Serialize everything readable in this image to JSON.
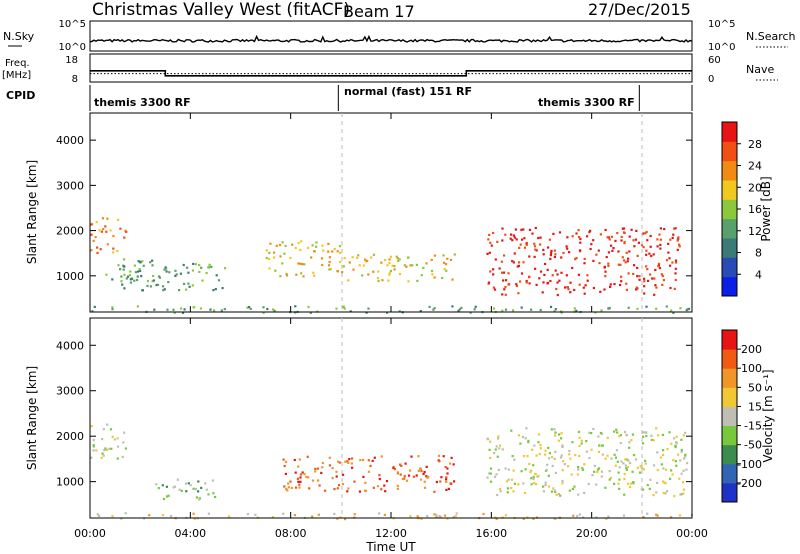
{
  "header": {
    "title": "Christmas Valley West (fitACF)",
    "beam": "Beam 17",
    "date": "27/Dec/2015"
  },
  "panels": {
    "noise": {
      "left_label": "N.Sky",
      "right_label": "N.Search",
      "left_ticks": [
        "10^5",
        "10^0"
      ],
      "right_ticks": [
        "10^5",
        "10^0"
      ]
    },
    "freq": {
      "left_label_1": "Freq.",
      "left_label_2": "[MHz]",
      "left_ticks": [
        "18",
        "8"
      ],
      "right_ticks": [
        "60",
        "0"
      ],
      "right_label": "Nave",
      "freq_steps": [
        {
          "start": 0.0,
          "end": 3.0,
          "value": 12.0
        },
        {
          "start": 3.0,
          "end": 15.0,
          "value": 10.2
        },
        {
          "start": 15.0,
          "end": 24.0,
          "value": 12.0
        }
      ],
      "nave_level": 18
    },
    "cpid": {
      "label": "CPID",
      "segments": [
        {
          "start": 0.0,
          "end": 9.9,
          "text": "themis 3300 RF"
        },
        {
          "start": 9.9,
          "end": 21.9,
          "text": "normal (fast) 151 RF"
        },
        {
          "start": 21.9,
          "end": 24.0,
          "text": ""
        }
      ],
      "extra_label": "themis 3300 RF"
    },
    "power": {
      "ylabel": "Slant Range [km]",
      "yticks": [
        1000,
        2000,
        3000,
        4000
      ],
      "ylim": [
        200,
        4600
      ],
      "colorbar_label": "Power [dB]",
      "colorbar_ticks": [
        "28",
        "24",
        "20",
        "16",
        "12",
        "8",
        "4"
      ],
      "colors": [
        "#0a1ee6",
        "#2a4ab4",
        "#3c7a78",
        "#5aa06a",
        "#8cc83c",
        "#f0c820",
        "#f08c14",
        "#f05014",
        "#e61414"
      ]
    },
    "velocity": {
      "ylabel": "Slant Range [km]",
      "yticks": [
        1000,
        2000,
        3000,
        4000
      ],
      "ylim": [
        200,
        4600
      ],
      "colorbar_label": "Velocity [m s⁻¹]",
      "colorbar_ticks": [
        "200",
        "100",
        "50",
        "15",
        "-15",
        "-50",
        "-100",
        "-200"
      ],
      "colors": [
        "#1e32c8",
        "#3264b4",
        "#3c8c50",
        "#78c83c",
        "#bebeb4",
        "#f0c832",
        "#f09628",
        "#f05a14",
        "#e61414"
      ]
    }
  },
  "xaxis": {
    "label": "Time UT",
    "ticks": [
      "00:00",
      "04:00",
      "08:00",
      "12:00",
      "16:00",
      "20:00",
      "00:00"
    ]
  },
  "chart_data": {
    "type": "heatmap",
    "x_unit": "hours UT",
    "xlim": [
      0,
      24
    ],
    "ylim": [
      200,
      4600
    ],
    "dashed_markers": [
      9.9,
      21.9
    ],
    "power_regions": [
      {
        "t0": 0.0,
        "t1": 1.4,
        "r0": 1500,
        "r1": 2300,
        "level": 6
      },
      {
        "t0": 0.6,
        "t1": 2.6,
        "r0": 900,
        "r1": 1400,
        "level": 3
      },
      {
        "t0": 1.2,
        "t1": 5.5,
        "r0": 700,
        "r1": 1300,
        "level": 3
      },
      {
        "t0": 7.0,
        "t1": 10.0,
        "r0": 1000,
        "r1": 1800,
        "level": 5
      },
      {
        "t0": 10.0,
        "t1": 14.5,
        "r0": 900,
        "r1": 1500,
        "level": 5
      },
      {
        "t0": 15.8,
        "t1": 23.5,
        "r0": 600,
        "r1": 2100,
        "level": 8
      },
      {
        "t0": 0.0,
        "t1": 24.0,
        "r0": 200,
        "r1": 350,
        "level": 3
      }
    ],
    "velocity_regions": [
      {
        "t0": 0.0,
        "t1": 1.4,
        "r0": 1500,
        "r1": 2300,
        "level": 4
      },
      {
        "t0": 2.6,
        "t1": 5.0,
        "r0": 600,
        "r1": 1100,
        "level": 3
      },
      {
        "t0": 7.5,
        "t1": 14.5,
        "r0": 800,
        "r1": 1600,
        "level": 7
      },
      {
        "t0": 15.8,
        "t1": 23.8,
        "r0": 700,
        "r1": 2200,
        "level": 4
      },
      {
        "t0": 0.0,
        "t1": 24.0,
        "r0": 200,
        "r1": 330,
        "level": 5
      }
    ]
  }
}
